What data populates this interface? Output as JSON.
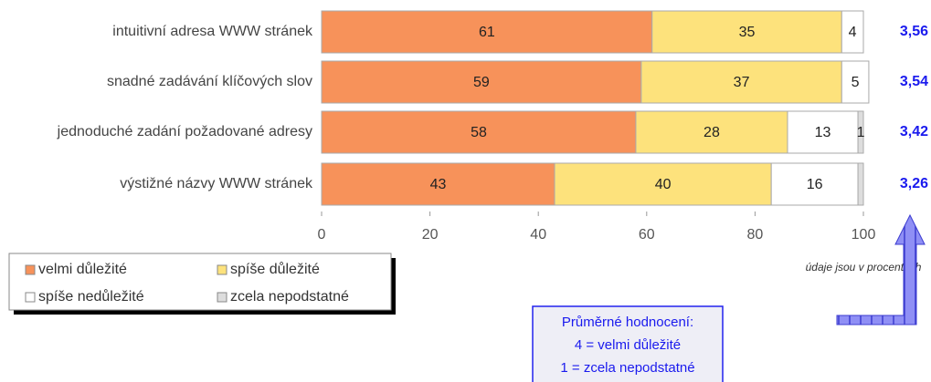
{
  "chart_data": {
    "type": "stacked-barh",
    "categories": [
      "intuitivní adresa WWW stránek",
      "snadné zadávání klíčových slov",
      "jednoduché zadání požadované adresy",
      "výstižné názvy WWW stránek"
    ],
    "series": [
      {
        "name": "velmi důležité",
        "color": "#f7925a",
        "values": [
          61,
          59,
          58,
          43
        ]
      },
      {
        "name": "spíše důležité",
        "color": "#fde27c",
        "values": [
          35,
          37,
          28,
          40
        ]
      },
      {
        "name": "spíše nedůležité",
        "color": "#ffffff",
        "values": [
          4,
          5,
          13,
          16
        ]
      },
      {
        "name": "zcela nepodstatné",
        "color": "#dddddd",
        "values": [
          0,
          0,
          1,
          1
        ],
        "value_labels": [
          null,
          null,
          "1",
          null
        ]
      }
    ],
    "xlim": [
      0,
      100
    ],
    "xticks": [
      0,
      20,
      40,
      60,
      80,
      100
    ],
    "scores": [
      {
        "value": 3.56,
        "label": "3,56"
      },
      {
        "value": 3.54,
        "label": "3,54"
      },
      {
        "value": 3.42,
        "label": "3,42"
      },
      {
        "value": 3.26,
        "label": "3,26"
      }
    ],
    "annotation": "údaje jsou v procentech",
    "note_lines": [
      "Průměrné hodnocení:",
      "4 = velmi důležité",
      "1 = zcela nepodstatné"
    ]
  }
}
